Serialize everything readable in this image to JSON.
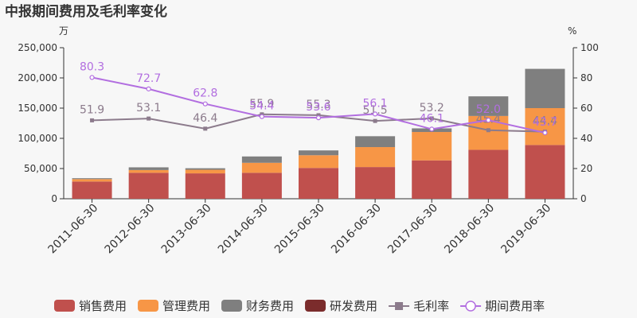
{
  "chart_data": {
    "type": "bar",
    "title": "中报期间费用及毛利率变化",
    "left_unit": "万",
    "right_unit": "%",
    "categories": [
      "2011-06-30",
      "2012-06-30",
      "2013-06-30",
      "2014-06-30",
      "2015-06-30",
      "2016-06-30",
      "2017-06-30",
      "2018-06-30",
      "2019-06-30"
    ],
    "stacked": true,
    "ylim": [
      0,
      250000
    ],
    "yticks": [
      "0",
      "50,000",
      "100,000",
      "150,000",
      "200,000",
      "250,000"
    ],
    "y2lim": [
      0,
      100
    ],
    "y2ticks": [
      "0",
      "20",
      "40",
      "60",
      "80",
      "100"
    ],
    "series": [
      {
        "name": "销售费用",
        "color": "#c0504d",
        "values": [
          28500,
          43000,
          42000,
          43000,
          51000,
          52500,
          63500,
          81000,
          89000
        ]
      },
      {
        "name": "管理费用",
        "color": "#f79646",
        "values": [
          4000,
          4500,
          6000,
          16500,
          21000,
          33000,
          47000,
          56000,
          61000
        ]
      },
      {
        "name": "财务费用",
        "color": "#7f7f7f",
        "values": [
          1500,
          4500,
          2500,
          10500,
          8000,
          18000,
          6000,
          32500,
          65000
        ]
      },
      {
        "name": "研发费用",
        "color": "#7b2c2c",
        "values": [
          0,
          0,
          0,
          0,
          0,
          0,
          0,
          0,
          0
        ]
      }
    ],
    "lines": [
      {
        "name": "毛利率",
        "color": "#8c7b8c",
        "marker": "square",
        "values": [
          51.9,
          53.1,
          46.4,
          55.9,
          55.3,
          51.5,
          53.2,
          45.4,
          44.4
        ],
        "labels": [
          "51.9",
          "53.1",
          "46.4",
          "55.9",
          "55.3",
          "51.5",
          "53.2",
          "45.4",
          "44.4"
        ]
      },
      {
        "name": "期间费用率",
        "color": "#b26ee0",
        "marker": "circle",
        "values": [
          80.3,
          72.7,
          62.8,
          54.4,
          53.6,
          56.1,
          46.1,
          52.0,
          43.7
        ],
        "labels": [
          "80.3",
          "72.7",
          "62.8",
          "54.4",
          "53.6",
          "56.1",
          "46.1",
          "52.0",
          "43.7"
        ]
      }
    ],
    "legend_position": "bottom",
    "grid": false
  }
}
